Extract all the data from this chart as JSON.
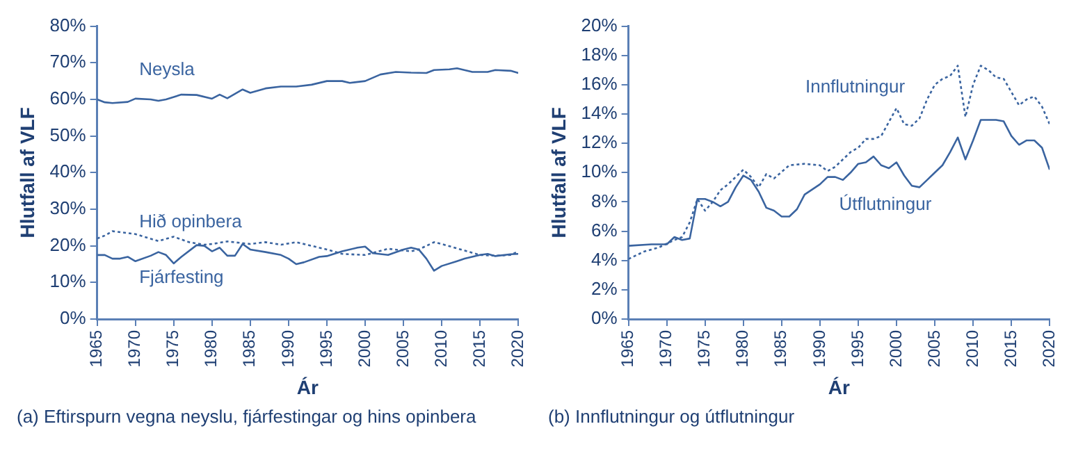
{
  "chart_data": [
    {
      "type": "line",
      "xlabel": "Ár",
      "ylabel": "Hlutfall af VLF",
      "xlim": [
        1965,
        2020
      ],
      "xticks": [
        1965,
        1970,
        1975,
        1980,
        1985,
        1990,
        1995,
        2000,
        2005,
        2010,
        2015,
        2020
      ],
      "ylim": [
        0,
        80
      ],
      "yticks": [
        {
          "value": 0,
          "label": "0%"
        },
        {
          "value": 10,
          "label": "10%"
        },
        {
          "value": 20,
          "label": "20%"
        },
        {
          "value": 30,
          "label": "30%"
        },
        {
          "value": 40,
          "label": "40%"
        },
        {
          "value": 50,
          "label": "50%"
        },
        {
          "value": 60,
          "label": "60%"
        },
        {
          "value": 70,
          "label": "70%"
        },
        {
          "value": 80,
          "label": "80%"
        }
      ],
      "grid": false,
      "legend": false,
      "marker": "none",
      "annotations": [
        "(a) Eftirspurn vegna neyslu, fjárfestingar og hins opinbera"
      ],
      "series": [
        {
          "name": "Neysla",
          "color": "#3a64a0",
          "line_style": "solid",
          "x": [
            1965,
            1966,
            1967,
            1969,
            1970,
            1972,
            1973,
            1974,
            1976,
            1978,
            1980,
            1981,
            1982,
            1984,
            1985,
            1987,
            1989,
            1991,
            1993,
            1995,
            1997,
            1998,
            2000,
            2002,
            2004,
            2006,
            2008,
            2009,
            2011,
            2012,
            2014,
            2016,
            2017,
            2019,
            2020
          ],
          "values": [
            60,
            59.2,
            59,
            59.3,
            60.2,
            60,
            59.6,
            60,
            61.3,
            61.2,
            60.2,
            61.3,
            60.3,
            62.7,
            61.8,
            63,
            63.5,
            63.5,
            64,
            65,
            65,
            64.5,
            65,
            66.8,
            67.5,
            67.3,
            67.2,
            68,
            68.2,
            68.5,
            67.5,
            67.5,
            68,
            67.8,
            67.2
          ]
        },
        {
          "name": "Hið opinbera",
          "color": "#3a64a0",
          "line_style": "dotted",
          "x": [
            1965,
            1966,
            1967,
            1970,
            1973,
            1975,
            1977,
            1979,
            1980,
            1982,
            1985,
            1987,
            1989,
            1991,
            1993,
            1995,
            1997,
            2000,
            2003,
            2006,
            2007,
            2009,
            2010,
            2012,
            2015,
            2017,
            2019,
            2020
          ],
          "values": [
            22,
            22.8,
            24,
            23.2,
            21.3,
            22.5,
            21,
            20.3,
            20.5,
            21.2,
            20.5,
            21,
            20.3,
            21,
            20,
            19,
            17.8,
            17.5,
            19.2,
            18.5,
            19,
            21,
            20.5,
            19.3,
            17.5,
            17.3,
            17.5,
            18.5
          ]
        },
        {
          "name": "Fjárfesting",
          "color": "#3a64a0",
          "line_style": "solid",
          "x": [
            1965,
            1966,
            1967,
            1968,
            1969,
            1970,
            1972,
            1973,
            1974,
            1975,
            1976,
            1978,
            1979,
            1980,
            1981,
            1982,
            1983,
            1984,
            1985,
            1987,
            1989,
            1990,
            1991,
            1992,
            1994,
            1995,
            1997,
            1999,
            2000,
            2001,
            2003,
            2005,
            2006,
            2007,
            2008,
            2009,
            2010,
            2012,
            2013,
            2015,
            2016,
            2017,
            2019,
            2020
          ],
          "values": [
            17.5,
            17.5,
            16.5,
            16.5,
            17,
            15.8,
            17.3,
            18.3,
            17.5,
            15.2,
            17,
            20.2,
            20,
            18.5,
            19.5,
            17.3,
            17.3,
            20.5,
            19,
            18.3,
            17.5,
            16.5,
            15,
            15.5,
            17,
            17.2,
            18.5,
            19.5,
            19.8,
            18,
            17.5,
            19,
            19.5,
            19,
            16.5,
            13.2,
            14.5,
            15.8,
            16.5,
            17.5,
            17.8,
            17.2,
            17.7,
            17.8
          ]
        }
      ]
    },
    {
      "type": "line",
      "xlabel": "Ár",
      "ylabel": "Hlutfall af VLF",
      "xlim": [
        1965,
        2020
      ],
      "xticks": [
        1965,
        1970,
        1975,
        1980,
        1985,
        1990,
        1995,
        2000,
        2005,
        2010,
        2015,
        2020
      ],
      "ylim": [
        0,
        20
      ],
      "yticks": [
        {
          "value": 0,
          "label": "0%"
        },
        {
          "value": 2,
          "label": "2%"
        },
        {
          "value": 4,
          "label": "4%"
        },
        {
          "value": 6,
          "label": "6%"
        },
        {
          "value": 8,
          "label": "8%"
        },
        {
          "value": 10,
          "label": "10%"
        },
        {
          "value": 12,
          "label": "12%"
        },
        {
          "value": 14,
          "label": "14%"
        },
        {
          "value": 16,
          "label": "16%"
        },
        {
          "value": 18,
          "label": "18%"
        },
        {
          "value": 20,
          "label": "20%"
        }
      ],
      "grid": false,
      "legend": false,
      "marker": "none",
      "annotations": [
        "(b) Innflutningur og útflutningur"
      ],
      "series": [
        {
          "name": "Innflutningur",
          "color": "#3a64a0",
          "line_style": "dotted",
          "x": [
            1965,
            1967,
            1969,
            1971,
            1972,
            1973,
            1974,
            1975,
            1976,
            1977,
            1978,
            1980,
            1981,
            1982,
            1983,
            1984,
            1986,
            1988,
            1990,
            1991,
            1992,
            1994,
            1995,
            1996,
            1997,
            1998,
            2000,
            2001,
            2002,
            2003,
            2004,
            2005,
            2006,
            2007,
            2008,
            2009,
            2010,
            2011,
            2012,
            2013,
            2014,
            2015,
            2016,
            2017,
            2018,
            2019,
            2020
          ],
          "values": [
            4.1,
            4.6,
            4.9,
            5.4,
            5.6,
            6.6,
            8.2,
            7.4,
            8,
            8.8,
            9.2,
            10.2,
            9.7,
            9,
            9.9,
            9.6,
            10.5,
            10.6,
            10.5,
            10.1,
            10.4,
            11.4,
            11.7,
            12.3,
            12.3,
            12.5,
            14.4,
            13.3,
            13.2,
            13.7,
            15,
            16,
            16.4,
            16.6,
            17.3,
            13.8,
            16,
            17.3,
            17,
            16.5,
            16.4,
            15.5,
            14.6,
            15,
            15.2,
            14.5,
            13.3
          ]
        },
        {
          "name": "Útflutningur",
          "color": "#3a64a0",
          "line_style": "solid",
          "x": [
            1965,
            1968,
            1970,
            1971,
            1972,
            1973,
            1974,
            1975,
            1976,
            1977,
            1978,
            1979,
            1980,
            1981,
            1982,
            1983,
            1984,
            1985,
            1986,
            1987,
            1988,
            1990,
            1991,
            1992,
            1993,
            1994,
            1995,
            1996,
            1997,
            1998,
            1999,
            2000,
            2001,
            2002,
            2003,
            2004,
            2005,
            2006,
            2007,
            2008,
            2009,
            2010,
            2011,
            2012,
            2013,
            2014,
            2015,
            2016,
            2017,
            2018,
            2019,
            2020
          ],
          "values": [
            5,
            5.1,
            5.1,
            5.6,
            5.4,
            5.5,
            8.2,
            8.2,
            8,
            7.7,
            8,
            9,
            9.8,
            9.5,
            8.7,
            7.6,
            7.4,
            7,
            7,
            7.5,
            8.5,
            9.2,
            9.7,
            9.7,
            9.5,
            10,
            10.6,
            10.7,
            11.1,
            10.5,
            10.3,
            10.7,
            9.8,
            9.1,
            9,
            9.5,
            10,
            10.5,
            11.4,
            12.4,
            10.9,
            12.2,
            13.6,
            13.6,
            13.6,
            13.5,
            12.5,
            11.9,
            12.2,
            12.2,
            11.7,
            10.2
          ]
        }
      ]
    }
  ]
}
